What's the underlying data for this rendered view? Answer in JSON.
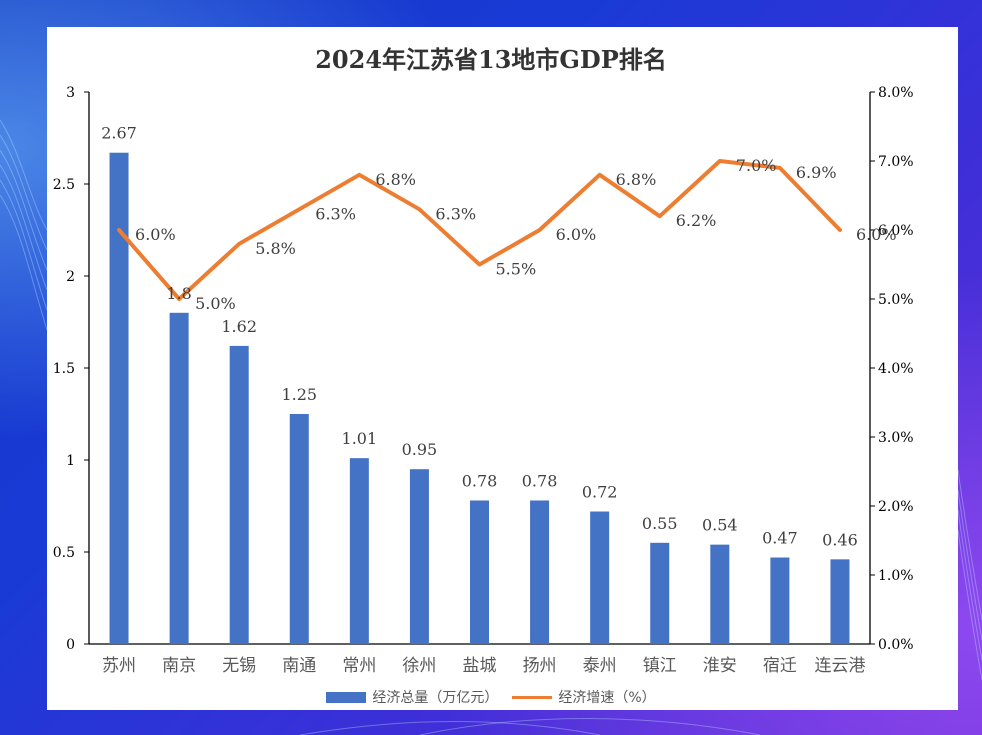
{
  "chart_data": {
    "type": "bar",
    "title": "2024年江苏省13地市GDP排名",
    "categories": [
      "苏州",
      "南京",
      "无锡",
      "南通",
      "常州",
      "徐州",
      "盐城",
      "扬州",
      "泰州",
      "镇江",
      "淮安",
      "宿迁",
      "连云港"
    ],
    "series": [
      {
        "name": "经济总量（万亿元）",
        "type": "bar",
        "axis": "left",
        "color": "#4472c4",
        "values": [
          2.67,
          1.8,
          1.62,
          1.25,
          1.01,
          0.95,
          0.78,
          0.78,
          0.72,
          0.55,
          0.54,
          0.47,
          0.46
        ],
        "labels": [
          "2.67",
          "1.8",
          "1.62",
          "1.25",
          "1.01",
          "0.95",
          "0.78",
          "0.78",
          "0.72",
          "0.55",
          "0.54",
          "0.47",
          "0.46"
        ]
      },
      {
        "name": "经济增速（%）",
        "type": "line",
        "axis": "right",
        "color": "#ed7d31",
        "values": [
          6.0,
          5.0,
          5.8,
          6.3,
          6.8,
          6.3,
          5.5,
          6.0,
          6.8,
          6.2,
          7.0,
          6.9,
          6.0
        ],
        "labels": [
          "6.0%",
          "5.0%",
          "5.8%",
          "6.3%",
          "6.8%",
          "6.3%",
          "5.5%",
          "6.0%",
          "6.8%",
          "6.2%",
          "7.0%",
          "6.9%",
          "6.0%"
        ]
      }
    ],
    "y_left": {
      "ylim": [
        0,
        3
      ],
      "ticks": [
        "0",
        "0.5",
        "1",
        "1.5",
        "2",
        "2.5",
        "3"
      ]
    },
    "y_right": {
      "ylim": [
        0,
        8
      ],
      "ticks": [
        "0.0%",
        "1.0%",
        "2.0%",
        "3.0%",
        "4.0%",
        "5.0%",
        "6.0%",
        "7.0%",
        "8.0%"
      ]
    },
    "grid": false,
    "legend_position": "bottom"
  }
}
